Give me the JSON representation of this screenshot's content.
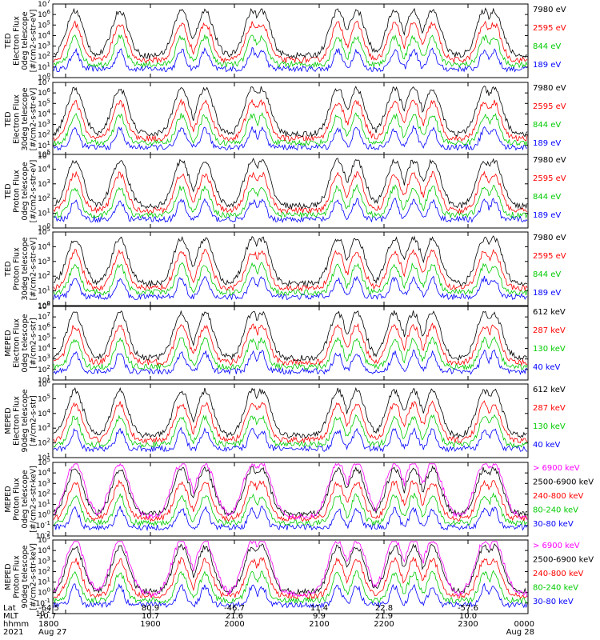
{
  "colors": {
    "blue": "#0000ff",
    "red": "#ff0000",
    "green": "#00cc00",
    "black": "#000000",
    "magenta": "#ff00ff"
  },
  "chart_data": [
    {
      "type": "line",
      "ylog": true,
      "ylim_exp": [
        0,
        7
      ],
      "ylabel": [
        "TED",
        "Electron Flux",
        "0deg telescope",
        "[#/cm2-s-str-eV]"
      ],
      "series": [
        {
          "name": "7980 eV",
          "color": "#000000"
        },
        {
          "name": "2595 eV",
          "color": "#ff0000"
        },
        {
          "name": "844 eV",
          "color": "#00cc00"
        },
        {
          "name": "189 eV",
          "color": "#0000ff"
        }
      ]
    },
    {
      "type": "line",
      "ylog": true,
      "ylim_exp": [
        0,
        7
      ],
      "ylabel": [
        "TED",
        "Electron Flux",
        "30deg telescope",
        "[#/cm2-s-str-eV]"
      ],
      "series": [
        {
          "name": "7980 eV",
          "color": "#000000"
        },
        {
          "name": "2595 eV",
          "color": "#ff0000"
        },
        {
          "name": "844 eV",
          "color": "#00cc00"
        },
        {
          "name": "189 eV",
          "color": "#0000ff"
        }
      ]
    },
    {
      "type": "line",
      "ylog": true,
      "ylim_exp": [
        0,
        5
      ],
      "ylabel": [
        "TED",
        "Proton Flux",
        "0deg telescope",
        "[#/cm2-s-str-eV]"
      ],
      "series": [
        {
          "name": "7980 eV",
          "color": "#000000"
        },
        {
          "name": "2595 eV",
          "color": "#ff0000"
        },
        {
          "name": "844 eV",
          "color": "#00cc00"
        },
        {
          "name": "189 eV",
          "color": "#0000ff"
        }
      ]
    },
    {
      "type": "line",
      "ylog": true,
      "ylim_exp": [
        0,
        5
      ],
      "ylabel": [
        "TED",
        "Proton Flux",
        "30deg telescope",
        "[#/cm2-s-str-eV]"
      ],
      "series": [
        {
          "name": "7980 eV",
          "color": "#000000"
        },
        {
          "name": "2595 eV",
          "color": "#ff0000"
        },
        {
          "name": "844 eV",
          "color": "#00cc00"
        },
        {
          "name": "189 eV",
          "color": "#0000ff"
        }
      ]
    },
    {
      "type": "line",
      "ylog": true,
      "ylim_exp": [
        1,
        8
      ],
      "ylabel": [
        "MEPED",
        "Electron Flux",
        "0deg telescope",
        "[#/cm2-s-str]"
      ],
      "series": [
        {
          "name": "612 keV",
          "color": "#000000"
        },
        {
          "name": "287 keV",
          "color": "#ff0000"
        },
        {
          "name": "130 keV",
          "color": "#00cc00"
        },
        {
          "name": "40 keV",
          "color": "#0000ff"
        }
      ]
    },
    {
      "type": "line",
      "ylog": true,
      "ylim_exp": [
        1,
        6
      ],
      "ylabel": [
        "MEPED",
        "Electron Flux",
        "90deg telescope",
        "[#/cm2-s-str]"
      ],
      "series": [
        {
          "name": "612 keV",
          "color": "#000000"
        },
        {
          "name": "287 keV",
          "color": "#ff0000"
        },
        {
          "name": "130 keV",
          "color": "#00cc00"
        },
        {
          "name": "40 keV",
          "color": "#0000ff"
        }
      ]
    },
    {
      "type": "line",
      "ylog": true,
      "ylim_exp": [
        -2,
        5
      ],
      "ylabel": [
        "MEPED",
        "Proton Flux",
        "0deg telescope",
        "[#/cm2-s-str-keV]"
      ],
      "series": [
        {
          "name": "> 6900 keV",
          "color": "#ff00ff"
        },
        {
          "name": "2500-6900 keV",
          "color": "#000000"
        },
        {
          "name": "240-800 keV",
          "color": "#ff0000"
        },
        {
          "name": "80-240 keV",
          "color": "#00cc00"
        },
        {
          "name": "30-80 keV",
          "color": "#0000ff"
        }
      ]
    },
    {
      "type": "line",
      "ylog": true,
      "ylim_exp": [
        -2,
        5
      ],
      "ylabel": [
        "MEPED",
        "Proton Flux",
        "90deg telescope",
        "[#/cm2-s-str-keV]"
      ],
      "series": [
        {
          "name": "> 6900 keV",
          "color": "#ff00ff"
        },
        {
          "name": "2500-6900 keV",
          "color": "#000000"
        },
        {
          "name": "240-800 keV",
          "color": "#ff0000"
        },
        {
          "name": "80-240 keV",
          "color": "#00cc00"
        },
        {
          "name": "30-80 keV",
          "color": "#0000ff"
        }
      ]
    }
  ],
  "x_axis": {
    "row_labels": [
      "Lat",
      "MLT",
      "hhmm",
      "2021"
    ],
    "ticks": [
      {
        "lat": "-64.5",
        "mlt": "10.7",
        "hhmm": "1800",
        "date": "Aug 27"
      },
      {
        "lat": "80.9",
        "mlt": "10.7",
        "hhmm": "1900",
        "date": ""
      },
      {
        "lat": "-46.7",
        "mlt": "21.6",
        "hhmm": "2000",
        "date": ""
      },
      {
        "lat": "11.4",
        "mlt": "9.9",
        "hhmm": "2100",
        "date": ""
      },
      {
        "lat": "22.8",
        "mlt": "21.9",
        "hhmm": "2200",
        "date": ""
      },
      {
        "lat": "-57.6",
        "mlt": "10.0",
        "hhmm": "2300",
        "date": ""
      },
      {
        "lat": "",
        "mlt": "",
        "hhmm": "0000",
        "date": "Aug 28"
      }
    ]
  }
}
